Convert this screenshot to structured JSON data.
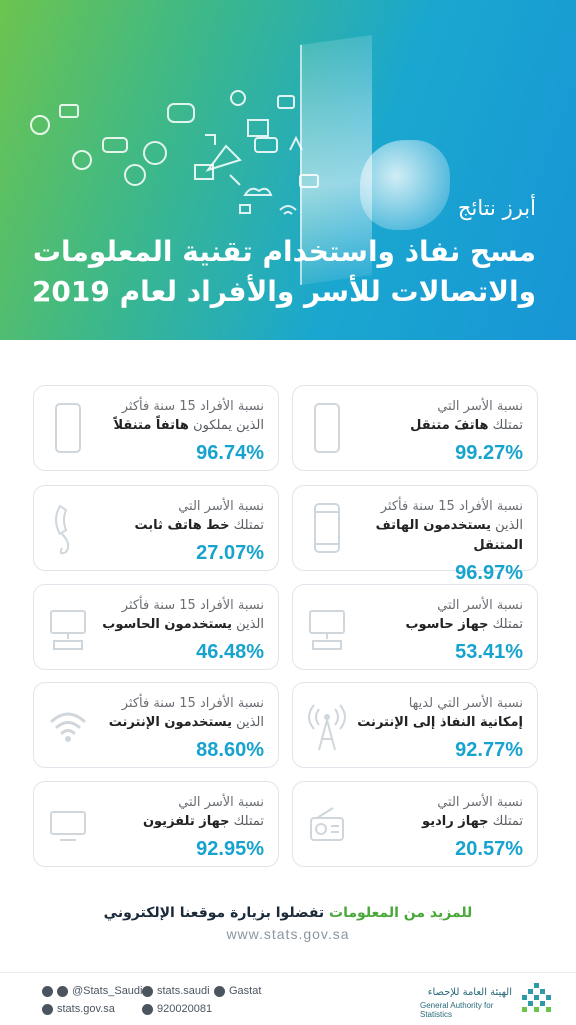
{
  "header": {
    "subtitle": "أبرز نتائج",
    "title_line1": "مسح نفاذ واستخدام تقنية المعلومات",
    "title_line2": "والاتصالات للأسر والأفراد لعام 2019"
  },
  "cards": [
    {
      "l1": "نسبة الأسر التي",
      "l2_pre": "تمتلك ",
      "l2_bold": "هاتفَ متنقل",
      "value": "99.27%",
      "icon": "mobile-phone-icon"
    },
    {
      "l1": "نسبة الأفراد 15 سنة فأكثر",
      "l2_pre": "الذين يملكون ",
      "l2_bold": "هاتفاً متنقلاً",
      "value": "96.74%",
      "icon": "mobile-phone-icon"
    },
    {
      "l1": "نسبة الأفراد  15 سنة فأكثر",
      "l2_pre": "الذين ",
      "l2_bold": "يستخدمون الهاتف المتنقل",
      "value": "96.97%",
      "icon": "smartphone-icon"
    },
    {
      "l1": "نسبة الأسر التي",
      "l2_pre": "تمتلك ",
      "l2_bold": "خط هاتف ثابت",
      "value": "27.07%",
      "icon": "landline-phone-icon"
    },
    {
      "l1": "نسبة الأسر التي",
      "l2_pre": "تمتلك ",
      "l2_bold": "جهاز حاسوب",
      "value": "53.41%",
      "icon": "computer-icon"
    },
    {
      "l1": "نسبة الأفراد 15 سنة فأكثر",
      "l2_pre": "الذين ",
      "l2_bold": "يستخدمون الحاسوب",
      "value": "46.48%",
      "icon": "computer-icon"
    },
    {
      "l1": "نسبة الأسر التي لديها",
      "l2_pre": "",
      "l2_bold": "إمكانية النفاذ إلى الإنترنت",
      "value": "92.77%",
      "icon": "antenna-icon"
    },
    {
      "l1": "نسبة الأفراد 15 سنة فأكثر",
      "l2_pre": "الذين ",
      "l2_bold": "يستخدمون الإنترنت",
      "value": "88.60%",
      "icon": "wifi-icon"
    },
    {
      "l1": "نسبة الأسر التي",
      "l2_pre": "تمتلك ",
      "l2_bold": "جهاز راديو",
      "value": "20.57%",
      "icon": "radio-icon"
    },
    {
      "l1": "نسبة الأسر التي",
      "l2_pre": "تمتلك ",
      "l2_bold": "جهاز تلفزيون",
      "value": "92.95%",
      "icon": "tv-icon"
    }
  ],
  "footer": {
    "cta_green": "للمزيد من المعلومات",
    "cta_dark": " تفضلوا بزيارة موقعنا الإلكتروني",
    "url": "www.stats.gov.sa"
  },
  "social": {
    "twitter": "@Stats_Saudi",
    "facebook": "stats.saudi",
    "linkedin": "Gastat",
    "web": "stats.gov.sa",
    "phone": "920020081"
  },
  "logo": {
    "ar": "الهيئة العامة للإحصاء",
    "en": "General Authority for Statistics"
  },
  "colors": {
    "accent": "#17a3cf",
    "green": "#4aa83a",
    "header_start": "#6cc44f",
    "header_end": "#1895d6"
  }
}
